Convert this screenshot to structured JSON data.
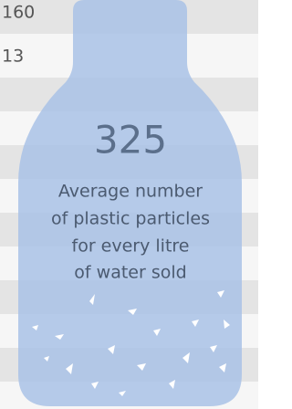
{
  "rows": [
    "160",
    "13"
  ],
  "highlight": {
    "value": "325",
    "caption": [
      "Average number",
      "of plastic particles",
      "for every litre",
      "of water sold"
    ]
  }
}
